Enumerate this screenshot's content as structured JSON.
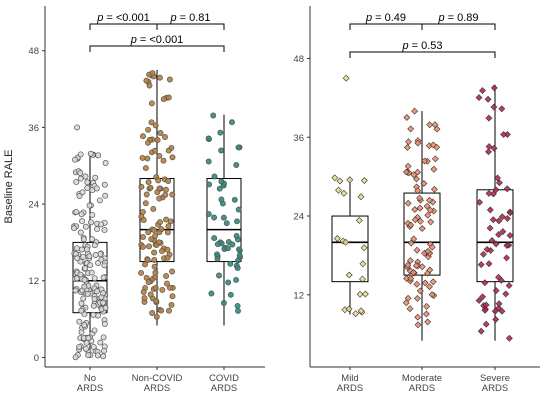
{
  "chart_data": [
    {
      "type": "box+jitter",
      "ylabel": "Baseline RALE",
      "ylim": [
        -1.5,
        55
      ],
      "yticks": [
        "0",
        "12",
        "24",
        "36",
        "48"
      ],
      "categories": [
        "No ARDS",
        "Non-COVID ARDS",
        "COVID ARDS"
      ],
      "category_labels": [
        [
          "No",
          "ARDS"
        ],
        [
          "Non-COVID",
          "ARDS"
        ],
        [
          "COVID",
          "ARDS"
        ]
      ],
      "colors": [
        "#d9d9d9",
        "#b8803a",
        "#2e8b7e"
      ],
      "boxes": [
        {
          "name": "No ARDS",
          "whisker_low": 0,
          "q1": 7,
          "median": 12,
          "q3": 18,
          "whisker_high": 32,
          "n": 180,
          "outliers": [
            36
          ]
        },
        {
          "name": "Non-COVID ARDS",
          "whisker_low": 5,
          "q1": 15,
          "median": 20,
          "q3": 28,
          "whisker_high": 45,
          "n": 120,
          "outliers": []
        },
        {
          "name": "COVID ARDS",
          "whisker_low": 5,
          "q1": 15,
          "median": 20,
          "q3": 28,
          "whisker_high": 38,
          "n": 55,
          "outliers": []
        }
      ],
      "comparisons": [
        {
          "from": 0,
          "to": 1,
          "label": "p = <0.001"
        },
        {
          "from": 1,
          "to": 2,
          "label": "p = 0.81"
        },
        {
          "from": 0,
          "to": 2,
          "label": "p = <0.001"
        }
      ]
    },
    {
      "type": "box+jitter",
      "ylabel": "",
      "ylim": [
        1,
        56
      ],
      "yticks": [
        "12",
        "24",
        "36",
        "48"
      ],
      "categories": [
        "Mild ARDS",
        "Moderate ARDS",
        "Severe ARDS"
      ],
      "category_labels": [
        [
          "Mild",
          "ARDS"
        ],
        [
          "Moderate",
          "ARDS"
        ],
        [
          "Severe",
          "ARDS"
        ]
      ],
      "colors": [
        "#e8d98c",
        "#f08c6e",
        "#b5294e"
      ],
      "boxes": [
        {
          "name": "Mild ARDS",
          "whisker_low": 9,
          "q1": 14,
          "median": 20,
          "q3": 24,
          "whisker_high": 30,
          "n": 22,
          "outliers": [
            45
          ]
        },
        {
          "name": "Moderate ARDS",
          "whisker_low": 5,
          "q1": 15,
          "median": 20,
          "q3": 27.5,
          "whisker_high": 40,
          "n": 90,
          "outliers": []
        },
        {
          "name": "Severe ARDS",
          "whisker_low": 5,
          "q1": 14,
          "median": 20,
          "q3": 28,
          "whisker_high": 44,
          "n": 60,
          "outliers": []
        }
      ],
      "comparisons": [
        {
          "from": 0,
          "to": 1,
          "label": "p = 0.49"
        },
        {
          "from": 1,
          "to": 2,
          "label": "p = 0.89"
        },
        {
          "from": 0,
          "to": 2,
          "label": "p = 0.53"
        }
      ]
    }
  ]
}
